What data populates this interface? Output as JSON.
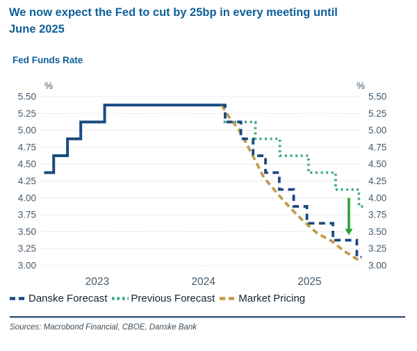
{
  "title": "We now expect the Fed to cut by 25bp in every meeting until June 2025",
  "subtitle": "Fed Funds Rate",
  "sources": "Sources: Macrobond Financial, CBOE, Danske Bank",
  "colors": {
    "heading_blue": "#0f5f99",
    "navy_line": "#1a4a80",
    "previous_green": "#3caa7f",
    "market_tan": "#c19a4c",
    "arrow_green": "#27a02d",
    "axis_text": "#44586a",
    "separator_navy": "#1d3f63"
  },
  "legend": [
    {
      "id": "danske_forecast",
      "label": "Danske Forecast",
      "color": "#1a4a80",
      "pattern": "dashed"
    },
    {
      "id": "previous_forecast",
      "label": "Previous Forecast",
      "color": "#3caa7f",
      "pattern": "dotted"
    },
    {
      "id": "market_pricing",
      "label": "Market Pricing",
      "color": "#c19a4c",
      "pattern": "dashed"
    }
  ],
  "chart_data": {
    "type": "line",
    "title": "Fed Funds Rate",
    "ylabel_left": "%",
    "ylabel_right": "%",
    "grid": true,
    "legend_position": "bottom-left",
    "ylim": [
      3.0,
      5.5
    ],
    "xlim": [
      2023.0,
      2025.975
    ],
    "y_ticks": [
      "5.50",
      "5.25",
      "5.00",
      "4.75",
      "4.50",
      "4.25",
      "4.00",
      "3.75",
      "3.50",
      "3.25",
      "3.00"
    ],
    "x_ticks": [
      "2023",
      "2024",
      "2025"
    ],
    "x_tick_positions": [
      2023.5,
      2024.5,
      2025.5
    ],
    "series": [
      {
        "id": "fed_funds_actual",
        "name": "Fed Funds Rate (actual)",
        "style": "solid",
        "color": "#1a4a80",
        "width": 4,
        "step": true,
        "points": [
          [
            2023.0,
            4.375
          ],
          [
            2023.09,
            4.625
          ],
          [
            2023.22,
            4.875
          ],
          [
            2023.345,
            5.125
          ],
          [
            2023.57,
            5.375
          ]
        ],
        "t_end": 2024.672
      },
      {
        "id": "previous_forecast",
        "name": "Previous Forecast",
        "style": "dotted",
        "color": "#3caa7f",
        "width": 3.6,
        "dash": "3 4.6",
        "step": true,
        "points": [
          [
            2024.69,
            5.125
          ],
          [
            2024.99,
            4.875
          ],
          [
            2025.22,
            4.625
          ],
          [
            2025.49,
            4.375
          ],
          [
            2025.745,
            4.125
          ],
          [
            2025.965,
            3.875
          ]
        ],
        "t_end": 2026.02
      },
      {
        "id": "market_pricing",
        "name": "Market Pricing",
        "style": "dashed",
        "color": "#c19a4c",
        "width": 3.8,
        "dash": "8.5 5.5",
        "step": false,
        "points": [
          [
            2024.672,
            5.375
          ],
          [
            2024.74,
            5.2
          ],
          [
            2024.83,
            5.02
          ],
          [
            2024.9,
            4.82
          ],
          [
            2024.99,
            4.55
          ],
          [
            2025.07,
            4.3
          ],
          [
            2025.2,
            4.06
          ],
          [
            2025.32,
            3.85
          ],
          [
            2025.44,
            3.66
          ],
          [
            2025.57,
            3.48
          ],
          [
            2025.71,
            3.36
          ],
          [
            2025.82,
            3.22
          ],
          [
            2025.94,
            3.1
          ],
          [
            2025.99,
            3.06
          ]
        ]
      },
      {
        "id": "danske_forecast",
        "name": "Danske Forecast",
        "style": "dashed",
        "color": "#1a4a80",
        "width": 3.8,
        "dash": "9 6.5",
        "step": true,
        "points": [
          [
            2024.672,
            5.375
          ],
          [
            2024.705,
            5.125
          ],
          [
            2024.853,
            4.875
          ],
          [
            2024.968,
            4.625
          ],
          [
            2025.085,
            4.375
          ],
          [
            2025.215,
            4.125
          ],
          [
            2025.35,
            3.875
          ],
          [
            2025.475,
            3.625
          ],
          [
            2025.72,
            3.375
          ],
          [
            2025.945,
            3.125
          ]
        ],
        "t_end": 2025.99
      }
    ],
    "arrow": {
      "x": 2025.87,
      "from": 4.0,
      "to": 3.45,
      "color": "#27a02d"
    }
  }
}
